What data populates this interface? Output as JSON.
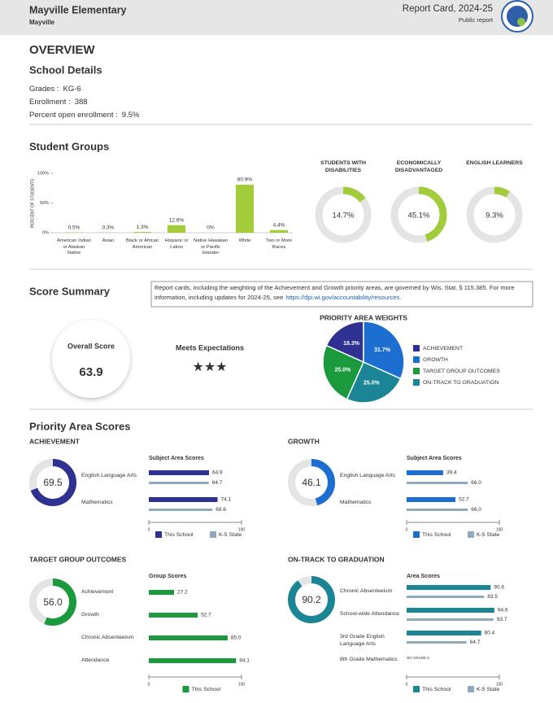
{
  "header": {
    "school": "Mayville Elementary",
    "district": "Mayville",
    "report": "Report Card, 2024-25",
    "subtitle": "Public report"
  },
  "overview": {
    "title": "OVERVIEW",
    "details_title": "School Details",
    "details": [
      {
        "label": "Grades :",
        "value": "KG-6"
      },
      {
        "label": "Enrollment :",
        "value": 388
      },
      {
        "label": "Percent open enrollment :",
        "value": "9.5%"
      }
    ]
  },
  "student_groups_title": "Student Groups",
  "score_summary": {
    "title": "Score Summary",
    "note": "Report cards, including the weighting of the Achievement and Growth priority areas, are governed by Wis. Stat. § 115.385. For more information, including updates for 2024-25, see",
    "link": "https://dpi.wi.gov/accountability/resources.",
    "overall_label": "Overall Score",
    "overall": 63.9,
    "rating": "Meets Expectations",
    "stars": "★★★"
  },
  "priority_title": "Priority Area Scores",
  "chart_data": [
    {
      "type": "bar",
      "y_label": "PERCENT OF STUDENTS",
      "categories": [
        "American Indian or Alaskan Native",
        "Asian",
        "Black or African American",
        "Hispanic or Latino",
        "Native Hawaiian or Pacific Islander",
        "White",
        "Two or More Races"
      ],
      "values": [
        0.5,
        0.3,
        1.3,
        12.6,
        0,
        80.9,
        4.4
      ],
      "value_labels": [
        "0.5%",
        "0.3%",
        "1.3%",
        "12.6%",
        "0%",
        "80.9%",
        "4.4%"
      ],
      "color": "#a3cc3a",
      "ylim": [
        0,
        100
      ],
      "yticks": [
        {
          "value": 0,
          "label": "0%"
        },
        {
          "value": 50,
          "label": "50%"
        },
        {
          "value": 100,
          "label": "100%"
        }
      ],
      "grid": false
    },
    {
      "type": "donut",
      "title": "STUDENTS WITH DISABILITIES",
      "value": 14.7,
      "value_label": "14.7%",
      "range": [
        0,
        100
      ],
      "color": "#a3cc3a"
    },
    {
      "type": "donut",
      "title": "ECONOMICALLY DISADVANTAGED",
      "value": 45.1,
      "value_label": "45.1%",
      "range": [
        0,
        100
      ],
      "color": "#a3cc3a"
    },
    {
      "type": "donut",
      "title": "ENGLISH LEARNERS",
      "value": 9.3,
      "value_label": "9.3%",
      "range": [
        0,
        100
      ],
      "color": "#a3cc3a"
    },
    {
      "type": "pie",
      "title": "PRIORITY AREA WEIGHTS",
      "categories": [
        "ACHIEVEMENT",
        "GROWTH",
        "TARGET GROUP OUTCOMES",
        "ON-TRACK TO GRADUATION"
      ],
      "values": [
        18.3,
        31.7,
        25.0,
        25.0
      ],
      "value_labels": [
        "18.3%",
        "31.7%",
        "25.0%",
        "25.0%"
      ],
      "colors": [
        "#2e3192",
        "#1c6fd1",
        "#1a9a3c",
        "#1a8595"
      ]
    },
    {
      "type": "donut",
      "title": "ACHIEVEMENT",
      "value": 69.5,
      "value_label": "69.5",
      "range": [
        0,
        100
      ],
      "color": "#2e3192"
    },
    {
      "type": "hbar",
      "title": "Subject Area Scores",
      "categories": [
        "English Language Arts",
        "Mathematics"
      ],
      "series": [
        {
          "name": "This School",
          "color": "#2e3192",
          "values": [
            64.9,
            74.1
          ],
          "value_labels": [
            "64.9",
            "74.1"
          ]
        },
        {
          "name": "K-5 State",
          "color": "#8faabd",
          "values": [
            64.7,
            68.6
          ],
          "value_labels": [
            "64.7",
            "68.6"
          ]
        }
      ],
      "xlim": [
        0,
        100
      ],
      "xticks": [
        0,
        100
      ]
    },
    {
      "type": "donut",
      "title": "GROWTH",
      "value": 46.1,
      "value_label": "46.1",
      "range": [
        0,
        100
      ],
      "color": "#1c6fd1"
    },
    {
      "type": "hbar",
      "title": "Subject Area Scores",
      "categories": [
        "English Language Arts",
        "Mathematics"
      ],
      "series": [
        {
          "name": "This School",
          "color": "#1c6fd1",
          "values": [
            39.4,
            52.7
          ],
          "value_labels": [
            "39.4",
            "52.7"
          ]
        },
        {
          "name": "K-5 State",
          "color": "#8faabd",
          "values": [
            66.0,
            66.0
          ],
          "value_labels": [
            "66.0",
            "66.0"
          ]
        }
      ],
      "xlim": [
        0,
        100
      ],
      "xticks": [
        0,
        100
      ]
    },
    {
      "type": "donut",
      "title": "TARGET GROUP OUTCOMES",
      "value": 56.0,
      "value_label": "56.0",
      "range": [
        0,
        100
      ],
      "color": "#1a9a3c"
    },
    {
      "type": "hbar",
      "title": "Group Scores",
      "categories": [
        "Achievement",
        "Growth",
        "Chronic Absenteeism",
        "Attendance"
      ],
      "series": [
        {
          "name": "This School",
          "color": "#1a9a3c",
          "values": [
            27.2,
            52.7,
            85.0,
            94.1
          ],
          "value_labels": [
            "27.2",
            "52.7",
            "85.0",
            "94.1"
          ]
        }
      ],
      "xlim": [
        0,
        100
      ],
      "xticks": [
        0,
        100
      ]
    },
    {
      "type": "donut",
      "title": "ON-TRACK TO GRADUATION",
      "value": 90.2,
      "value_label": "90.2",
      "range": [
        0,
        100
      ],
      "color": "#1a8595"
    },
    {
      "type": "hbar",
      "title": "Area Scores",
      "categories": [
        "Chronic Absenteeism",
        "School-wide Attendance",
        "3rd Grade English Language Arts",
        "8th Grade Mathematics"
      ],
      "series": [
        {
          "name": "This School",
          "color": "#1a8595",
          "values": [
            90.6,
            94.6,
            80.4,
            null
          ],
          "value_labels": [
            "90.6",
            "94.6",
            "80.4",
            null
          ]
        },
        {
          "name": "K-5 State",
          "color": "#8faabd",
          "values": [
            83.5,
            93.7,
            64.7,
            null
          ],
          "value_labels": [
            "83.5",
            "93.7",
            "64.7",
            null
          ]
        }
      ],
      "note": "NO GRADE 8",
      "xlim": [
        0,
        100
      ],
      "xticks": [
        0,
        100
      ]
    }
  ]
}
